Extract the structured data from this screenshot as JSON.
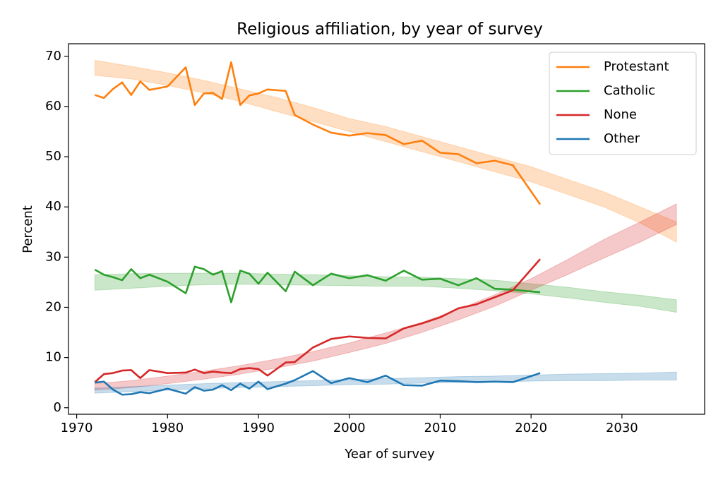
{
  "chart_data": {
    "type": "line",
    "title": "Religious affiliation, by year of survey",
    "xlabel": "Year of survey",
    "ylabel": "Percent",
    "x": [
      1972,
      1973,
      1974,
      1975,
      1976,
      1977,
      1978,
      1980,
      1982,
      1983,
      1984,
      1985,
      1986,
      1987,
      1988,
      1989,
      1990,
      1991,
      1993,
      1994,
      1996,
      1998,
      2000,
      2002,
      2004,
      2006,
      2008,
      2010,
      2012,
      2014,
      2016,
      2018,
      2021
    ],
    "band_x": [
      1972,
      1976,
      1980,
      1984,
      1988,
      1992,
      1996,
      2000,
      2004,
      2008,
      2012,
      2016,
      2020,
      2024,
      2028,
      2032,
      2036
    ],
    "series": [
      {
        "name": "Protestant",
        "color": "#ff7f0e",
        "values": [
          62.3,
          61.7,
          63.5,
          64.8,
          62.3,
          65.0,
          63.3,
          64.0,
          67.8,
          60.3,
          62.6,
          62.7,
          61.5,
          68.8,
          60.3,
          62.2,
          62.6,
          63.4,
          63.1,
          58.3,
          56.4,
          54.8,
          54.2,
          54.7,
          54.3,
          52.5,
          53.2,
          50.8,
          50.5,
          48.7,
          49.2,
          48.3,
          40.5
        ],
        "band_lower": [
          66.2,
          65.5,
          64.2,
          62.7,
          61,
          59,
          57,
          55,
          53,
          51,
          49,
          47,
          45,
          42.5,
          40,
          36.8,
          33
        ],
        "band_upper": [
          69.2,
          68,
          66.7,
          65.2,
          63.5,
          61.8,
          59.8,
          57.6,
          56,
          54,
          52,
          50,
          48,
          45.5,
          43,
          40,
          37
        ]
      },
      {
        "name": "Catholic",
        "color": "#2ca02c",
        "values": [
          27.5,
          26.5,
          26.0,
          25.4,
          27.6,
          25.8,
          26.5,
          25.1,
          22.8,
          28.1,
          27.6,
          26.5,
          27.2,
          21.0,
          27.3,
          26.7,
          24.7,
          26.9,
          23.2,
          27.1,
          24.4,
          26.7,
          25.8,
          26.4,
          25.3,
          27.3,
          25.5,
          25.7,
          24.4,
          25.8,
          23.7,
          23.5,
          23.0
        ],
        "band_lower": [
          23.4,
          23.8,
          24.2,
          24.5,
          24.6,
          24.5,
          24.4,
          24.3,
          24.2,
          24.2,
          23.8,
          23.3,
          22.7,
          21.9,
          21,
          20.2,
          19
        ],
        "band_upper": [
          26.5,
          26.7,
          26.8,
          26.8,
          26.8,
          26.6,
          26.5,
          26.3,
          26.1,
          26.0,
          25.7,
          25.4,
          24.7,
          24,
          23.1,
          22.4,
          21.5
        ]
      },
      {
        "name": "None",
        "color": "#d62728",
        "values": [
          5.1,
          6.7,
          6.9,
          7.4,
          7.5,
          5.9,
          7.5,
          6.9,
          7.0,
          7.6,
          6.9,
          7.2,
          7.0,
          6.9,
          7.7,
          7.9,
          7.7,
          6.4,
          9.0,
          9.1,
          12.0,
          13.7,
          14.2,
          13.9,
          13.8,
          15.8,
          16.8,
          18.0,
          19.8,
          20.6,
          22.0,
          23.4,
          29.6
        ],
        "band_lower": [
          3.5,
          4.0,
          4.8,
          5.7,
          6.7,
          7.9,
          9.3,
          11,
          12.8,
          15,
          17.5,
          20.2,
          23.4,
          26.5,
          29.8,
          33,
          36.5
        ],
        "band_upper": [
          4.8,
          5.4,
          6.3,
          7.3,
          8.4,
          9.7,
          11.2,
          12.9,
          14.9,
          17,
          19.6,
          22.5,
          25.7,
          29.5,
          33.5,
          37,
          40.6
        ]
      },
      {
        "name": "Other",
        "color": "#1f77b4",
        "values": [
          5.0,
          5.2,
          3.6,
          2.6,
          2.7,
          3.1,
          2.9,
          3.8,
          2.8,
          4.1,
          3.4,
          3.6,
          4.5,
          3.5,
          4.8,
          3.8,
          5.2,
          3.7,
          4.8,
          5.5,
          7.3,
          4.9,
          5.9,
          5.1,
          6.4,
          4.5,
          4.4,
          5.4,
          5.3,
          5.1,
          5.2,
          5.1,
          6.9
        ],
        "band_lower": [
          2.9,
          3.2,
          3.5,
          3.8,
          4,
          4.2,
          4.4,
          4.6,
          4.7,
          4.9,
          5,
          5.1,
          5.3,
          5.4,
          5.4,
          5.5,
          5.5
        ],
        "band_upper": [
          3.9,
          4.2,
          4.5,
          4.8,
          5,
          5.2,
          5.4,
          5.6,
          5.8,
          6,
          6.2,
          6.3,
          6.5,
          6.7,
          6.8,
          6.9,
          7.1
        ]
      }
    ],
    "xlim": [
      1969.1,
      2039.1
    ],
    "xticks": [
      1970,
      1980,
      1990,
      2000,
      2010,
      2020,
      2030
    ],
    "ylim": [
      -1.3,
      72.5
    ],
    "yticks": [
      0,
      10,
      20,
      30,
      40,
      50,
      60,
      70
    ],
    "band_opacity": 0.25,
    "legend": "upper right",
    "grid": false
  }
}
